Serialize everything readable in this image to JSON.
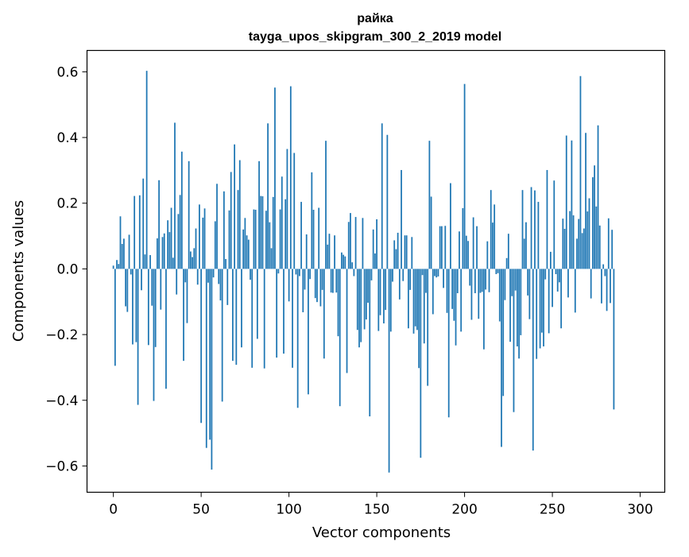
{
  "chart_data": {
    "type": "bar",
    "title": "райка",
    "subtitle": "tayga_upos_skipgram_300_2_2019 model",
    "xlabel": "Vector components",
    "ylabel": "Components values",
    "xlim": [
      -15,
      314
    ],
    "ylim": [
      -0.68,
      0.665
    ],
    "xticks": [
      0,
      50,
      100,
      150,
      200,
      250,
      300
    ],
    "yticks": [
      -0.6,
      -0.4,
      -0.2,
      0.0,
      0.2,
      0.4,
      0.6
    ],
    "xtick_labels": [
      "0",
      "50",
      "100",
      "150",
      "200",
      "250",
      "300"
    ],
    "ytick_labels": [
      "−0.6",
      "−0.4",
      "−0.2",
      "0.0",
      "0.2",
      "0.4",
      "0.6"
    ],
    "grid": false,
    "bar_color": "#1f77b4",
    "values": [
      0.01,
      -0.295,
      0.027,
      0.015,
      0.16,
      0.076,
      0.092,
      -0.114,
      -0.131,
      0.104,
      -0.017,
      -0.23,
      0.222,
      -0.223,
      -0.414,
      0.224,
      -0.065,
      0.275,
      0.044,
      0.603,
      -0.232,
      0.042,
      -0.112,
      -0.402,
      -0.238,
      0.093,
      0.27,
      -0.124,
      0.097,
      0.108,
      -0.365,
      0.148,
      0.112,
      0.186,
      0.034,
      0.445,
      -0.078,
      0.167,
      0.225,
      0.357,
      -0.28,
      -0.041,
      -0.165,
      0.328,
      0.053,
      0.036,
      0.063,
      0.123,
      -0.048,
      0.196,
      -0.469,
      0.156,
      0.184,
      -0.545,
      -0.042,
      -0.52,
      -0.611,
      -0.026,
      0.145,
      0.259,
      -0.046,
      -0.096,
      -0.404,
      0.236,
      0.03,
      -0.11,
      0.178,
      0.295,
      -0.28,
      0.379,
      -0.292,
      0.24,
      0.331,
      -0.239,
      0.12,
      0.155,
      0.102,
      0.089,
      -0.033,
      -0.301,
      0.181,
      0.18,
      -0.213,
      0.328,
      0.222,
      0.221,
      -0.303,
      0.177,
      0.443,
      0.142,
      0.063,
      0.219,
      0.552,
      -0.27,
      -0.014,
      0.181,
      0.281,
      -0.258,
      0.212,
      0.365,
      -0.099,
      0.556,
      -0.301,
      0.353,
      -0.017,
      -0.423,
      -0.022,
      0.204,
      -0.132,
      -0.063,
      0.105,
      -0.382,
      -0.031,
      0.294,
      0.18,
      -0.089,
      -0.101,
      0.186,
      -0.114,
      -0.064,
      -0.273,
      0.39,
      0.074,
      0.107,
      -0.072,
      -0.073,
      0.102,
      -0.072,
      -0.205,
      -0.418,
      0.05,
      0.043,
      0.038,
      -0.317,
      0.143,
      0.17,
      0.02,
      -0.022,
      0.158,
      -0.186,
      -0.239,
      -0.223,
      0.155,
      -0.184,
      -0.154,
      -0.103,
      -0.449,
      -0.035,
      0.12,
      0.047,
      0.151,
      -0.189,
      -0.141,
      0.443,
      -0.166,
      -0.125,
      0.408,
      -0.62,
      -0.191,
      -0.039,
      0.087,
      0.06,
      0.11,
      -0.093,
      0.301,
      -0.037,
      0.102,
      0.102,
      -0.181,
      -0.064,
      0.097,
      -0.197,
      -0.175,
      -0.186,
      -0.302,
      -0.575,
      -0.019,
      -0.227,
      -0.073,
      -0.356,
      0.39,
      0.22,
      -0.138,
      -0.022,
      -0.026,
      -0.023,
      0.13,
      0.13,
      -0.058,
      0.131,
      -0.134,
      -0.452,
      0.261,
      -0.122,
      -0.158,
      -0.233,
      -0.074,
      0.114,
      -0.191,
      0.185,
      0.563,
      0.101,
      0.085,
      -0.051,
      -0.155,
      0.157,
      -0.074,
      0.13,
      -0.152,
      -0.073,
      -0.07,
      -0.245,
      -0.063,
      0.084,
      -0.071,
      0.24,
      0.141,
      0.196,
      -0.016,
      -0.013,
      -0.16,
      -0.542,
      -0.387,
      -0.095,
      0.033,
      0.107,
      -0.222,
      -0.083,
      -0.436,
      -0.066,
      -0.236,
      -0.273,
      -0.202,
      0.24,
      0.092,
      0.142,
      -0.081,
      -0.153,
      0.249,
      -0.553,
      0.239,
      -0.274,
      0.204,
      -0.242,
      -0.194,
      -0.236,
      -0.032,
      0.301,
      -0.196,
      0.052,
      -0.116,
      0.269,
      -0.016,
      -0.069,
      -0.041,
      -0.181,
      0.153,
      0.122,
      0.406,
      -0.087,
      0.176,
      0.391,
      0.163,
      -0.133,
      0.092,
      0.152,
      0.587,
      0.109,
      0.123,
      0.414,
      0.175,
      0.215,
      -0.09,
      0.279,
      0.315,
      0.19,
      0.437,
      0.132,
      -0.105,
      0.014,
      -0.022,
      -0.128,
      0.154,
      -0.104,
      0.119,
      -0.428
    ]
  }
}
